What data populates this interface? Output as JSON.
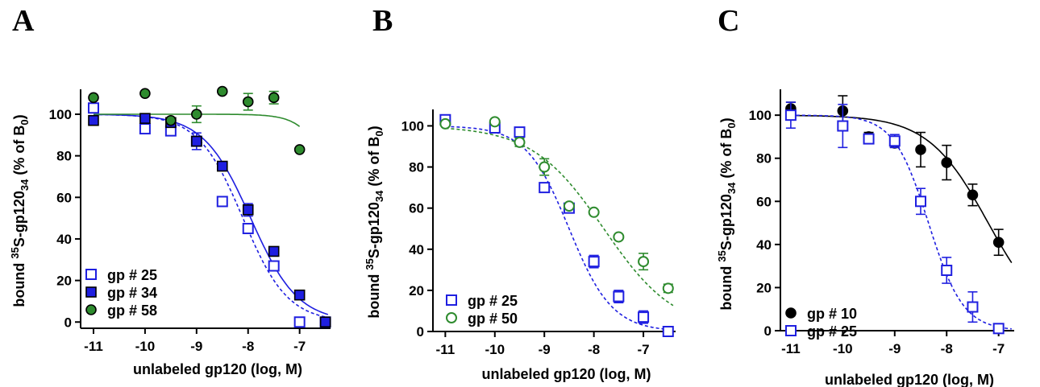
{
  "chart_data": [
    {
      "panel": "A",
      "type": "scatter",
      "xlabel": "unlabeled gp120 (log, M)",
      "ylabel": [
        "bound ",
        "35",
        "S-gp120",
        "34",
        " (% of B",
        "0",
        ")"
      ],
      "xlim": [
        -11.25,
        -6.4
      ],
      "ylim": [
        -3,
        112
      ],
      "xticks": [
        -11,
        -10,
        -9,
        -8,
        -7
      ],
      "yticks": [
        0,
        20,
        40,
        60,
        80,
        100
      ],
      "legend_position": "bottom-left",
      "series": [
        {
          "name": "gp # 25",
          "marker": "square-open",
          "color": "#1f1fe0",
          "line": "dashed",
          "x": [
            -11,
            -10,
            -9.5,
            -9,
            -8.5,
            -8,
            -7.5,
            -7,
            -6.5
          ],
          "y": [
            103,
            93,
            92,
            87,
            58,
            45,
            27,
            0,
            0
          ],
          "err": [
            0,
            0,
            0,
            0,
            0,
            0,
            0,
            0,
            0
          ],
          "fit": {
            "top": 100,
            "bottom": 0,
            "logEC50": -8.1,
            "hill": 1.0
          }
        },
        {
          "name": "gp # 34",
          "marker": "square-filled",
          "color": "#1f1fe0",
          "line": "solid",
          "x": [
            -11,
            -10,
            -9.5,
            -9,
            -8.5,
            -8,
            -7.5,
            -7,
            -6.5
          ],
          "y": [
            97,
            98,
            96,
            87,
            75,
            54,
            34,
            13,
            0
          ],
          "err": [
            0,
            2,
            2,
            4,
            2,
            3,
            1,
            1,
            0
          ],
          "fit": {
            "top": 100,
            "bottom": 0,
            "logEC50": -7.95,
            "hill": 0.95
          }
        },
        {
          "name": "gp # 58",
          "marker": "circle-filled",
          "color": "#2e8b2e",
          "line": "solid",
          "x": [
            -11,
            -10,
            -9.5,
            -9,
            -8.5,
            -8,
            -7.5,
            -7
          ],
          "y": [
            108,
            110,
            97,
            100,
            111,
            106,
            108,
            83
          ],
          "err": [
            0,
            0,
            0,
            4,
            0,
            4,
            3,
            0
          ],
          "fit": {
            "top": 100,
            "bottom": 0,
            "logEC50": -6.2,
            "hill": 1.5,
            "xmax": -7
          }
        }
      ]
    },
    {
      "panel": "B",
      "type": "scatter",
      "xlabel": "unlabeled gp120 (log, M)",
      "ylabel": [
        "bound ",
        "35",
        "S-gp120",
        "34",
        " (% of B",
        "0",
        ")"
      ],
      "xlim": [
        -11.25,
        -6.35
      ],
      "ylim": [
        0,
        108
      ],
      "xticks": [
        -11,
        -10,
        -9,
        -8,
        -7
      ],
      "yticks": [
        0,
        20,
        40,
        60,
        80,
        100
      ],
      "legend_position": "bottom-left",
      "series": [
        {
          "name": "gp # 25",
          "marker": "square-open",
          "color": "#1f1fe0",
          "line": "dashed",
          "x": [
            -11,
            -10,
            -9.5,
            -9,
            -8.5,
            -8,
            -7.5,
            -7,
            -6.5
          ],
          "y": [
            103,
            99,
            97,
            70,
            60,
            34,
            17,
            7,
            0
          ],
          "err": [
            0,
            0,
            0,
            0,
            2,
            3,
            3,
            3,
            0
          ],
          "fit": {
            "top": 100,
            "bottom": 0,
            "logEC50": -8.5,
            "hill": 1.0
          }
        },
        {
          "name": "gp # 50",
          "marker": "circle-open",
          "color": "#2e8b2e",
          "line": "dashed",
          "x": [
            -11,
            -10,
            -9.5,
            -9,
            -8.5,
            -8,
            -7.5,
            -7,
            -6.5
          ],
          "y": [
            101,
            102,
            92,
            80,
            61,
            58,
            46,
            34,
            21
          ],
          "err": [
            0,
            0,
            2,
            4,
            0,
            0,
            0,
            4,
            2
          ],
          "fit": {
            "top": 100,
            "bottom": 0,
            "logEC50": -7.8,
            "hill": 0.6
          }
        }
      ]
    },
    {
      "panel": "C",
      "type": "scatter",
      "xlabel": "unlabeled gp120 (log, M)",
      "ylabel": [
        "bound ",
        "35",
        "S-gp120",
        "34",
        " (% of B",
        "0",
        ")"
      ],
      "xlim": [
        -11.2,
        -6.7
      ],
      "ylim": [
        0,
        112
      ],
      "xticks": [
        -11,
        -10,
        -9,
        -8,
        -7
      ],
      "yticks": [
        0,
        20,
        40,
        60,
        80,
        100
      ],
      "legend_position": "bottom-left",
      "series": [
        {
          "name": "gp # 10",
          "marker": "circle-filled",
          "color": "#000000",
          "line": "solid",
          "x": [
            -11,
            -10,
            -9.5,
            -9,
            -8.5,
            -8,
            -7.5,
            -7
          ],
          "y": [
            103,
            102,
            90,
            87,
            84,
            78,
            63,
            41
          ],
          "err": [
            3,
            7,
            2,
            2,
            8,
            8,
            5,
            6
          ],
          "fit": {
            "top": 100,
            "bottom": 0,
            "logEC50": -7.2,
            "hill": 0.75
          }
        },
        {
          "name": "gp # 25",
          "marker": "square-open",
          "color": "#1f1fe0",
          "line": "dashed",
          "x": [
            -11,
            -10,
            -9.5,
            -9,
            -8.5,
            -8,
            -7.5,
            -7
          ],
          "y": [
            100,
            95,
            89,
            88,
            60,
            28,
            11,
            1
          ],
          "err": [
            6,
            10,
            2,
            3,
            6,
            6,
            7,
            1
          ],
          "fit": {
            "top": 100,
            "bottom": 0,
            "logEC50": -8.35,
            "hill": 1.3
          }
        }
      ]
    }
  ]
}
